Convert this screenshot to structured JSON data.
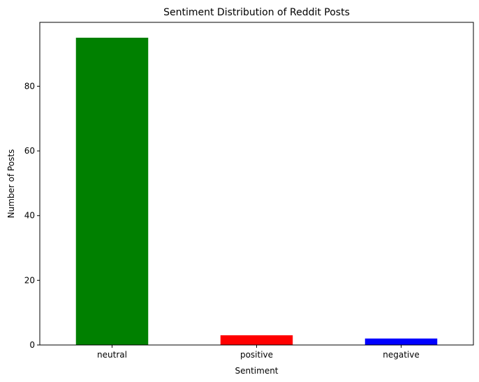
{
  "chart_data": {
    "type": "bar",
    "title": "Sentiment Distribution of Reddit Posts",
    "xlabel": "Sentiment",
    "ylabel": "Number of Posts",
    "categories": [
      "neutral",
      "positive",
      "negative"
    ],
    "values": [
      95,
      3,
      2
    ],
    "colors": [
      "#008000",
      "#ff0000",
      "#0000ff"
    ],
    "ylim": [
      0,
      99.75
    ],
    "yticks": [
      0,
      20,
      40,
      60,
      80
    ],
    "grid": false,
    "legend": "none"
  }
}
